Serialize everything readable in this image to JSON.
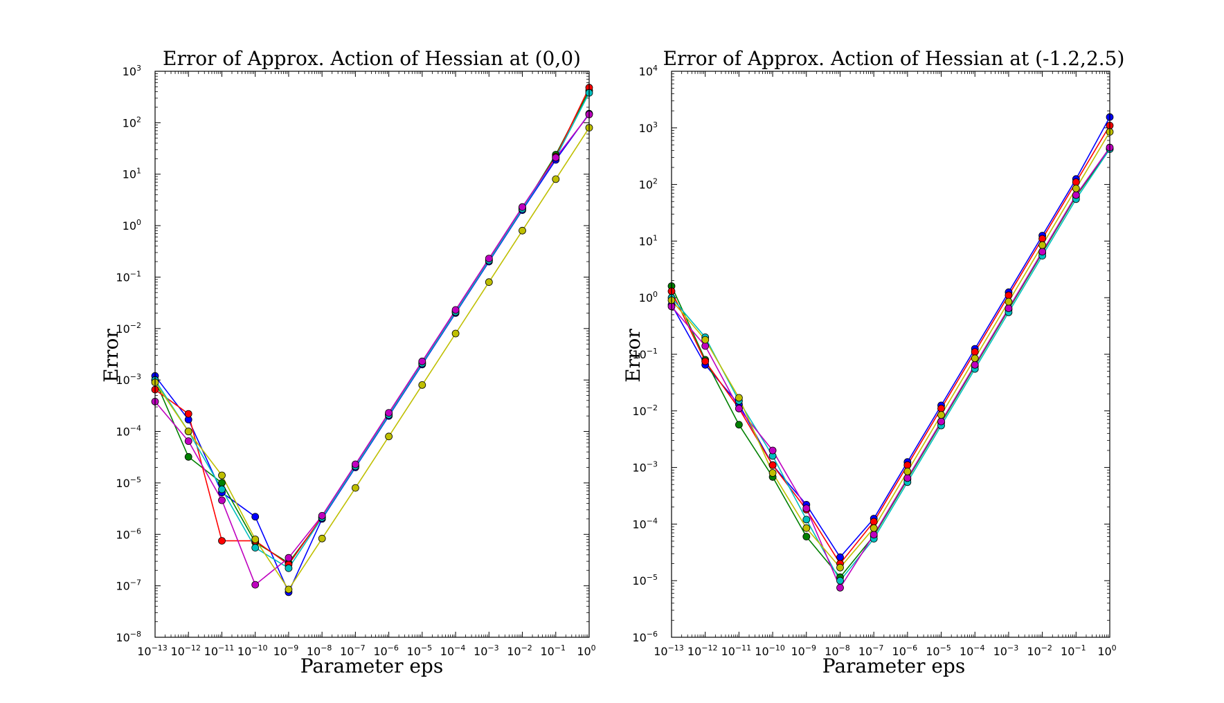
{
  "chart_data": [
    {
      "type": "line",
      "title": "Error of Approx. Action of Hessian at (0,0)",
      "xlabel": "Parameter eps",
      "ylabel": "Error",
      "xscale": "log",
      "yscale": "log",
      "xlim": [
        1e-13,
        1
      ],
      "ylim": [
        1e-08,
        1000
      ],
      "x_tick_exponents": [
        -13,
        -12,
        -11,
        -10,
        -9,
        -8,
        -7,
        -6,
        -5,
        -4,
        -3,
        -2,
        -1,
        0
      ],
      "y_tick_exponents": [
        -8,
        -7,
        -6,
        -5,
        -4,
        -3,
        -2,
        -1,
        0,
        1,
        2,
        3
      ],
      "tick_base": "10",
      "grid": false,
      "marker": "circle",
      "x": [
        1e-13,
        1e-12,
        1e-11,
        1e-10,
        1e-09,
        1e-08,
        1e-07,
        1e-06,
        1e-05,
        0.0001,
        0.001,
        0.01,
        0.1,
        1
      ],
      "series": [
        {
          "color": "#0000ff",
          "values": [
            0.0012,
            0.00017,
            6.5e-06,
            2.2e-06,
            7.5e-08,
            2e-06,
            2e-05,
            0.0002,
            0.002,
            0.02,
            0.2,
            2.0,
            19,
            150
          ]
        },
        {
          "color": "#008000",
          "values": [
            0.001,
            3.2e-05,
            1e-05,
            7e-07,
            2.8e-07,
            2.1e-06,
            2.1e-05,
            0.00021,
            0.0021,
            0.021,
            0.21,
            2.1,
            24,
            420
          ]
        },
        {
          "color": "#ff0000",
          "values": [
            0.00065,
            0.00022,
            7.5e-07,
            7.5e-07,
            2.6e-07,
            2.2e-06,
            2.2e-05,
            0.00022,
            0.0022,
            0.022,
            0.22,
            2.2,
            22,
            480
          ]
        },
        {
          "color": "#00bfbf",
          "values": [
            0.001,
            0.0001,
            7.5e-06,
            5.5e-07,
            2.2e-07,
            2.1e-06,
            2.1e-05,
            0.00021,
            0.0021,
            0.021,
            0.21,
            2.1,
            21,
            380
          ]
        },
        {
          "color": "#bf00bf",
          "values": [
            0.00038,
            6.5e-05,
            4.6e-06,
            1.05e-07,
            3.5e-07,
            2.3e-06,
            2.3e-05,
            0.00023,
            0.0023,
            0.023,
            0.23,
            2.3,
            21,
            145
          ]
        },
        {
          "color": "#bfbf00",
          "values": [
            0.0009,
            0.0001,
            1.4e-05,
            8e-07,
            8.5e-08,
            8.3e-07,
            8e-06,
            8e-05,
            0.0008,
            0.008,
            0.08,
            0.8,
            8,
            80
          ]
        }
      ]
    },
    {
      "type": "line",
      "title": "Error of Approx. Action of Hessian at (-1.2,2.5)",
      "xlabel": "Parameter eps",
      "ylabel": "Error",
      "xscale": "log",
      "yscale": "log",
      "xlim": [
        1e-13,
        1
      ],
      "ylim": [
        1e-06,
        10000
      ],
      "x_tick_exponents": [
        -13,
        -12,
        -11,
        -10,
        -9,
        -8,
        -7,
        -6,
        -5,
        -4,
        -3,
        -2,
        -1,
        0
      ],
      "y_tick_exponents": [
        -6,
        -5,
        -4,
        -3,
        -2,
        -1,
        0,
        1,
        2,
        3,
        4
      ],
      "tick_base": "10",
      "grid": false,
      "marker": "circle",
      "x": [
        1e-13,
        1e-12,
        1e-11,
        1e-10,
        1e-09,
        1e-08,
        1e-07,
        1e-06,
        1e-05,
        0.0001,
        0.001,
        0.01,
        0.1,
        1
      ],
      "series": [
        {
          "color": "#0000ff",
          "values": [
            0.75,
            0.065,
            0.013,
            0.0011,
            0.00022,
            2.6e-05,
            0.000125,
            0.00125,
            0.0125,
            0.125,
            1.25,
            12.5,
            125,
            1550
          ]
        },
        {
          "color": "#008000",
          "values": [
            1.6,
            0.08,
            0.0057,
            0.00068,
            6e-05,
            1.15e-05,
            6.2e-05,
            0.00062,
            0.0062,
            0.062,
            0.62,
            6.2,
            62,
            430
          ]
        },
        {
          "color": "#ff0000",
          "values": [
            1.3,
            0.075,
            0.011,
            0.0011,
            0.00018,
            2e-05,
            0.00011,
            0.0011,
            0.011,
            0.11,
            1.1,
            11,
            110,
            1100
          ]
        },
        {
          "color": "#00bfbf",
          "values": [
            1.0,
            0.2,
            0.015,
            0.0016,
            0.00012,
            1e-05,
            5.5e-05,
            0.00055,
            0.0055,
            0.055,
            0.55,
            5.5,
            55,
            420
          ]
        },
        {
          "color": "#bf00bf",
          "values": [
            0.7,
            0.14,
            0.011,
            0.002,
            0.00019,
            7.5e-06,
            6.5e-05,
            0.00065,
            0.0065,
            0.065,
            0.65,
            6.5,
            65,
            450
          ]
        },
        {
          "color": "#bfbf00",
          "values": [
            0.9,
            0.18,
            0.017,
            0.0008,
            8.5e-05,
            1.7e-05,
            8.5e-05,
            0.00085,
            0.0085,
            0.085,
            0.85,
            8.5,
            85,
            850
          ]
        }
      ]
    }
  ]
}
